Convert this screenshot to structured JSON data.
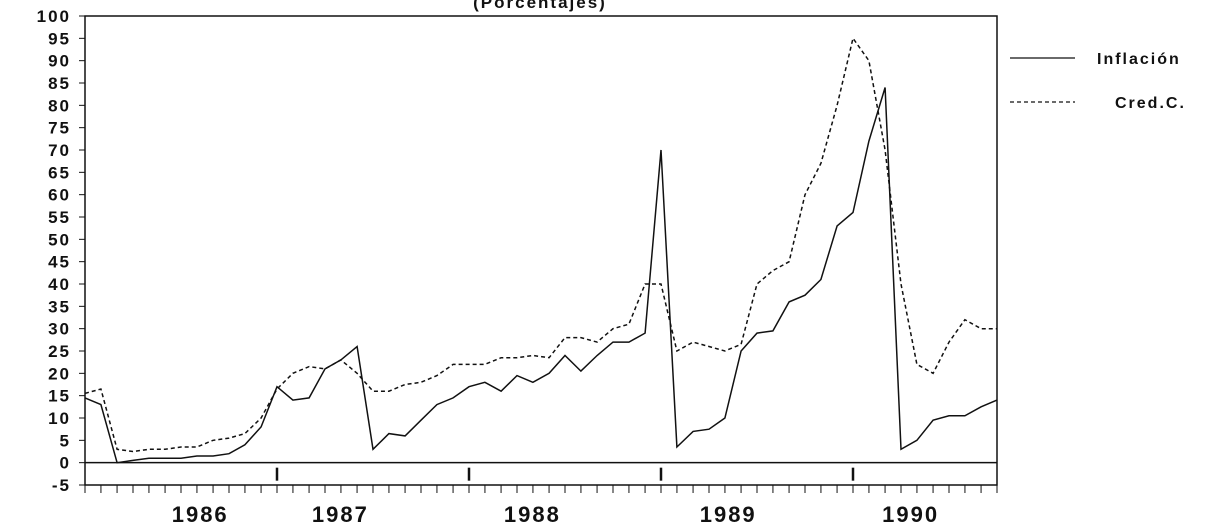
{
  "chart_data": {
    "type": "line",
    "title": "(Porcentajes)",
    "x": [
      1986,
      1986.083,
      1986.167,
      1986.25,
      1986.333,
      1986.417,
      1986.5,
      1986.583,
      1986.667,
      1986.75,
      1986.833,
      1986.917,
      1987,
      1987.083,
      1987.167,
      1987.25,
      1987.333,
      1987.417,
      1987.5,
      1987.583,
      1987.667,
      1987.75,
      1987.833,
      1987.917,
      1988,
      1988.083,
      1988.167,
      1988.25,
      1988.333,
      1988.417,
      1988.5,
      1988.583,
      1988.667,
      1988.75,
      1988.833,
      1988.917,
      1989,
      1989.083,
      1989.167,
      1989.25,
      1989.333,
      1989.417,
      1989.5,
      1989.583,
      1989.667,
      1989.75,
      1989.833,
      1989.917,
      1990,
      1990.083,
      1990.167,
      1990.25,
      1990.333,
      1990.417,
      1990.5,
      1990.583,
      1990.667,
      1990.75
    ],
    "series": [
      {
        "name": "Inflación",
        "color": "#111111",
        "dash": "none",
        "values": [
          14.5,
          13,
          0,
          0.5,
          1,
          1,
          1,
          1.5,
          1.5,
          2,
          4,
          8,
          17,
          14,
          14.5,
          21,
          23,
          26,
          3,
          6.5,
          6,
          9.5,
          13,
          14.5,
          17,
          18,
          16,
          19.5,
          18,
          20,
          24,
          20.5,
          24,
          27,
          27,
          29,
          70,
          3.5,
          7,
          7.5,
          10,
          25,
          29,
          29.5,
          36,
          37.5,
          41,
          53,
          56,
          72,
          84,
          3,
          5,
          9.5,
          10.5,
          10.5,
          12.5,
          14
        ]
      },
      {
        "name": "Cred.C.",
        "color": "#111111",
        "dash": "4 3",
        "values": [
          15.5,
          16.5,
          3,
          2.5,
          3,
          3,
          3.5,
          3.5,
          5,
          5.5,
          6.5,
          10,
          16.5,
          20,
          21.5,
          21,
          23,
          20,
          16,
          16,
          17.5,
          18,
          19.5,
          22,
          22,
          22,
          23.5,
          23.5,
          24,
          23.5,
          28,
          28,
          27,
          30,
          31,
          40,
          40,
          25,
          27,
          26,
          25,
          26.5,
          40,
          43,
          45,
          60,
          67,
          80,
          95,
          90,
          70,
          40,
          22,
          20,
          27,
          32,
          30,
          30
        ]
      }
    ],
    "xlim": [
      1986,
      1990.75
    ],
    "xticks": [
      {
        "value": 1986.6,
        "label": "1986"
      },
      {
        "value": 1987.33,
        "label": "1987"
      },
      {
        "value": 1988.33,
        "label": "1988"
      },
      {
        "value": 1989.35,
        "label": "1989"
      },
      {
        "value": 1990.3,
        "label": "1990"
      }
    ],
    "year_ticks": [
      1987,
      1988,
      1989,
      1990
    ],
    "ylim": [
      -5,
      100
    ],
    "yticks": [
      -5,
      0,
      5,
      10,
      15,
      20,
      25,
      30,
      35,
      40,
      45,
      50,
      55,
      60,
      65,
      70,
      75,
      80,
      85,
      90,
      95,
      100
    ],
    "zero_line": true,
    "legend": "right"
  }
}
